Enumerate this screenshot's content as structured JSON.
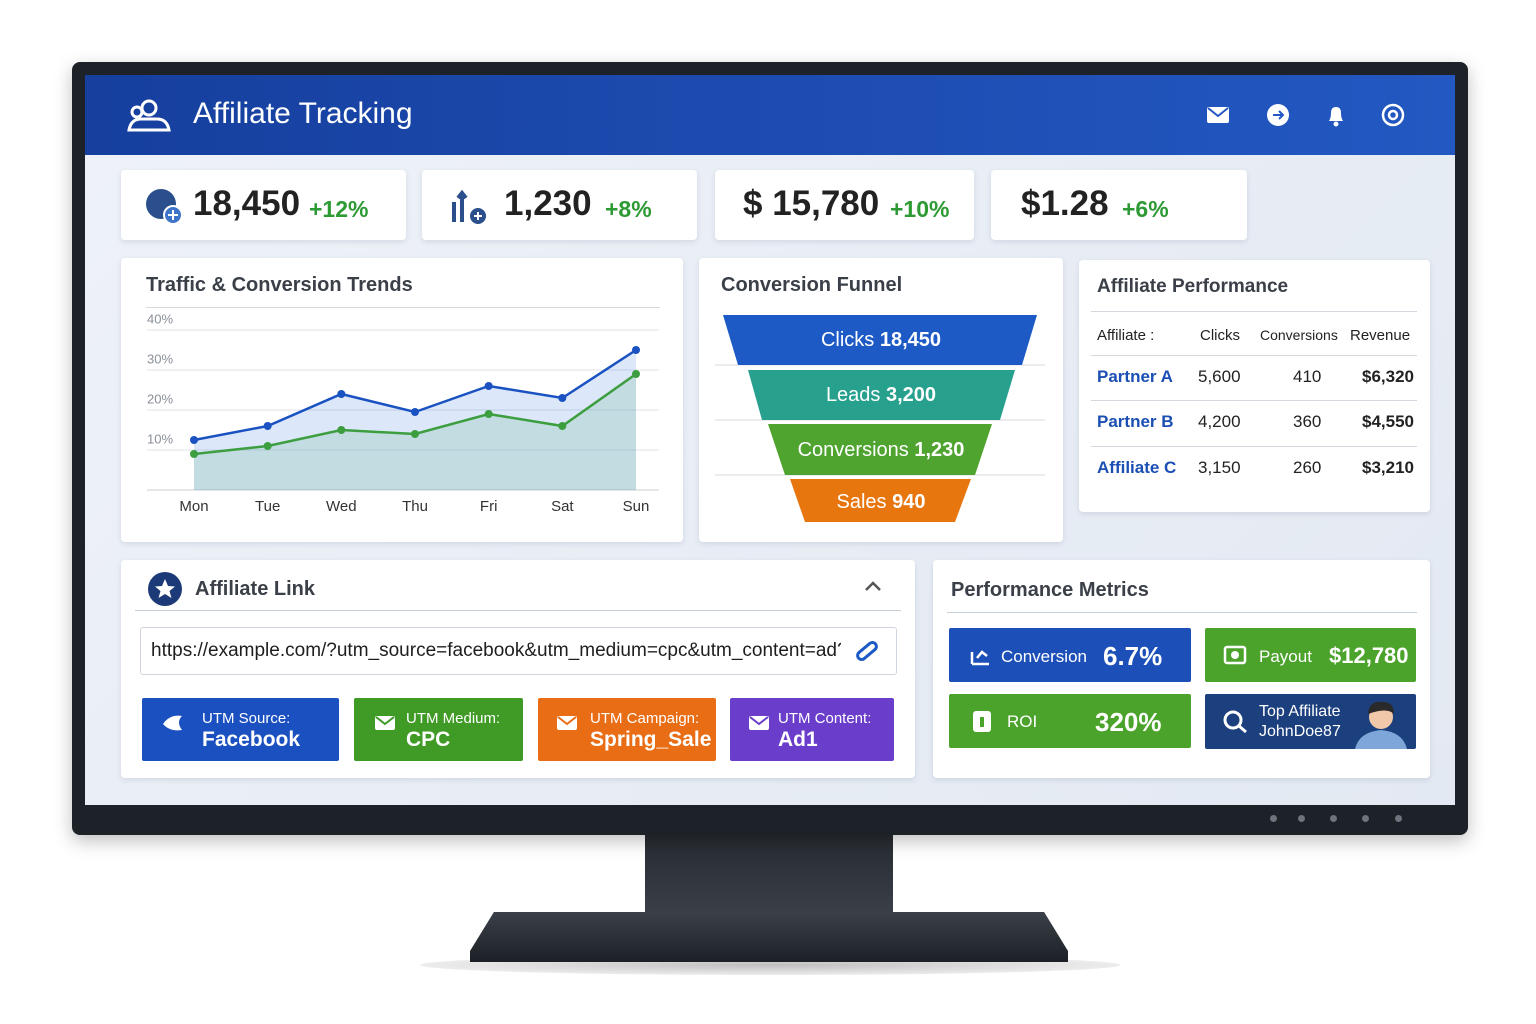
{
  "header": {
    "title": "Affiliate Tracking"
  },
  "kpis": [
    {
      "value": "18,450",
      "change": "+12%"
    },
    {
      "value": "1,230",
      "change": "+8%"
    },
    {
      "value": "$ 15,780",
      "change": "+10%"
    },
    {
      "value": "$1.28",
      "change": "+6%"
    }
  ],
  "trends": {
    "title": "Traffic & Conversion Trends",
    "categories": [
      "Mon",
      "Tue",
      "Wed",
      "Thu",
      "Fri",
      "Sat",
      "Sun"
    ],
    "ylim": [
      0,
      45
    ],
    "yticks": [
      {
        "value": 40,
        "label": "40%"
      },
      {
        "value": 30,
        "label": "30%"
      },
      {
        "value": 20,
        "label": "20%"
      },
      {
        "value": 10,
        "label": "10%"
      }
    ],
    "series": [
      {
        "color": "#1a52c2",
        "values": [
          12.5,
          16,
          24,
          19.5,
          26,
          23,
          35
        ]
      },
      {
        "color": "#3d9e3f",
        "values": [
          9,
          11,
          15,
          14,
          19,
          16,
          29
        ]
      }
    ]
  },
  "funnel": {
    "title": "Conversion Funnel",
    "stages": [
      {
        "label": "Clicks",
        "value": "18,450"
      },
      {
        "label": "Leads",
        "value": "3,200"
      },
      {
        "label": "Conversions",
        "value": "1,230"
      },
      {
        "label": "Sales",
        "value": "940"
      }
    ]
  },
  "performance": {
    "title": "Affiliate Performance",
    "columns": [
      "Affiliate :",
      "Clicks",
      "Conversions",
      "Revenue"
    ],
    "rows": [
      [
        "Partner A",
        "5,600",
        "410",
        "$6,320"
      ],
      [
        "Partner B",
        "4,200",
        "360",
        "$4,550"
      ],
      [
        "Affiliate C",
        "3,150",
        "260",
        "$3,210"
      ]
    ]
  },
  "link": {
    "title": "Affiliate Link",
    "url": "https://example.com/?utm_source=facebook&utm_medium=cpc&utm_content=ad?",
    "tags": [
      {
        "label": "UTM Source:",
        "value": "Facebook"
      },
      {
        "label": "UTM Medium:",
        "value": "CPC"
      },
      {
        "label": "UTM Campaign:",
        "value": "Spring_Sale"
      },
      {
        "label": "UTM Content:",
        "value": "Ad1"
      }
    ]
  },
  "metrics": {
    "title": "Performance Metrics",
    "tiles": [
      {
        "label": "Conversion",
        "value": "6.7%"
      },
      {
        "label": "Payout",
        "value": "$12,780"
      },
      {
        "label": "ROI",
        "value": "320%"
      },
      {
        "label": "Top Affiliate",
        "value": "JohnDoe87"
      }
    ]
  }
}
